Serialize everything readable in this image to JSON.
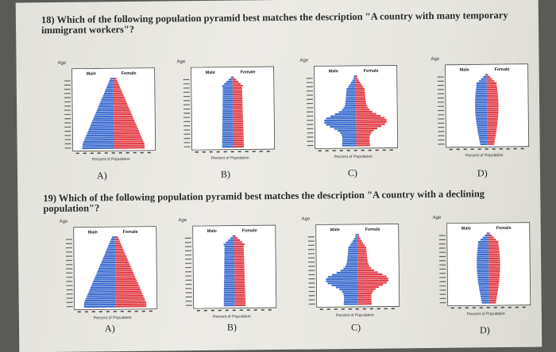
{
  "questions": [
    {
      "number": "18)",
      "text": "Which of the following population pyramid best matches the description \"A country with many temporary immigrant workers\"?",
      "choices": [
        "A)",
        "B)",
        "C)",
        "D)"
      ]
    },
    {
      "number": "19)",
      "text": "Which of the following population pyramid best matches the description \"A country with a declining population\"?",
      "choices": [
        "A)",
        "B)",
        "C)",
        "D)"
      ]
    }
  ],
  "pyramid_labels": {
    "age": "Age",
    "male": "Male",
    "female": "Female",
    "x_axis": "Percent of Population"
  },
  "colors": {
    "male": "#3f6fd0",
    "female": "#e2414a",
    "border": "#4a4a4a"
  }
}
